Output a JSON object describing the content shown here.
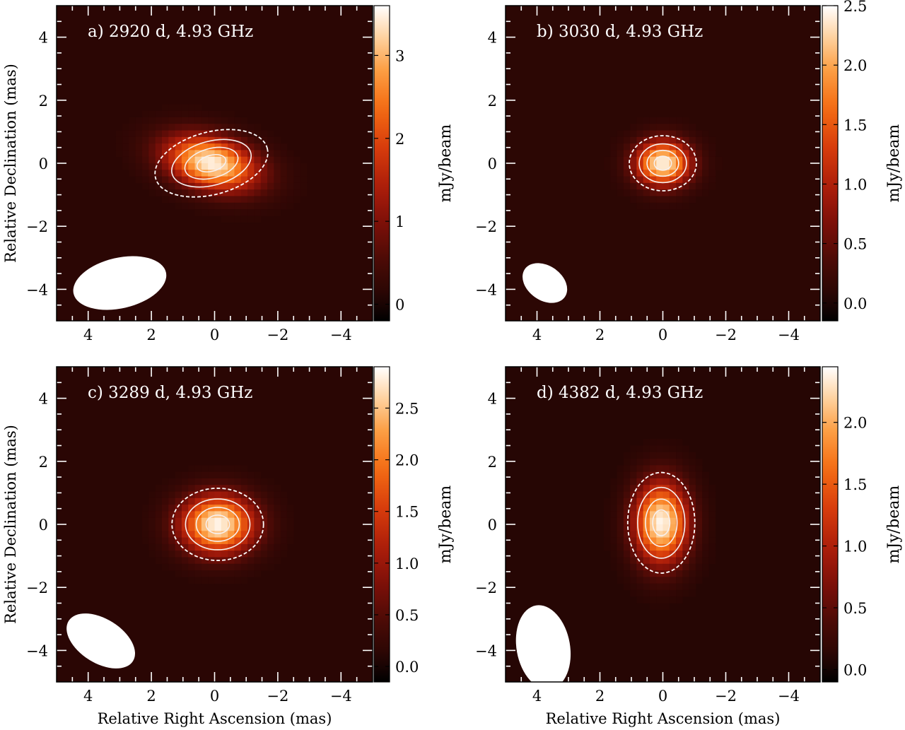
{
  "figure": {
    "xlabel": "Relative Right Ascension (mas)",
    "ylabel": "Relative Declination (mas)",
    "colorbar_label": "mJy/beam"
  },
  "chart_data": [
    {
      "type": "heatmap",
      "panel": "a",
      "title": "a) 2920 d, 4.93 GHz",
      "xlabel": "Relative Right Ascension (mas)",
      "ylabel": "Relative Declination (mas)",
      "xlim": [
        5,
        -5
      ],
      "ylim": [
        -5,
        5
      ],
      "xticks": [
        4,
        2,
        0,
        -2,
        -4
      ],
      "yticks": [
        -4,
        -2,
        0,
        2,
        4
      ],
      "colorbar": {
        "label": "mJy/beam",
        "range": [
          -0.2,
          3.6
        ],
        "ticks": [
          0,
          1,
          2,
          3
        ],
        "tick_labels": [
          "0",
          "1",
          "2",
          "3"
        ]
      },
      "source": {
        "center_ra": 0.1,
        "center_dec": 0.0,
        "major_fwhm_mas": 2.4,
        "minor_fwhm_mas": 1.3,
        "pa_deg": 15,
        "peak_mJy": 3.5
      },
      "contours": [
        {
          "level_frac": 0.2,
          "style": "dashed"
        },
        {
          "level_frac": 0.45,
          "style": "solid"
        },
        {
          "level_frac": 0.7,
          "style": "solid"
        },
        {
          "level_frac": 0.9,
          "style": "solid"
        }
      ],
      "beam": {
        "ra": 3.0,
        "dec": -3.8,
        "major_mas": 3.0,
        "minor_mas": 1.6,
        "angle_deg": -13
      }
    },
    {
      "type": "heatmap",
      "panel": "b",
      "title": "b) 3030 d, 4.93 GHz",
      "xlabel": "Relative Right Ascension (mas)",
      "ylabel": "Relative Declination (mas)",
      "xlim": [
        5,
        -5
      ],
      "ylim": [
        -5,
        5
      ],
      "xticks": [
        4,
        2,
        0,
        -2,
        -4
      ],
      "yticks": [
        -4,
        -2,
        0,
        2,
        4
      ],
      "colorbar": {
        "label": "mJy/beam",
        "range": [
          -0.15,
          2.5
        ],
        "ticks": [
          0.0,
          0.5,
          1.0,
          1.5,
          2.0,
          2.5
        ],
        "tick_labels": [
          "0.0",
          "0.5",
          "1.0",
          "1.5",
          "2.0",
          "2.5"
        ]
      },
      "source": {
        "center_ra": 0.0,
        "center_dec": 0.0,
        "major_fwhm_mas": 1.4,
        "minor_fwhm_mas": 1.15,
        "pa_deg": 0,
        "peak_mJy": 2.45
      },
      "contours": [
        {
          "level_frac": 0.2,
          "style": "dashed"
        },
        {
          "level_frac": 0.45,
          "style": "solid"
        },
        {
          "level_frac": 0.7,
          "style": "solid"
        },
        {
          "level_frac": 0.9,
          "style": "solid"
        }
      ],
      "beam": {
        "ra": 3.75,
        "dec": -3.8,
        "major_mas": 1.55,
        "minor_mas": 1.1,
        "angle_deg": 35
      }
    },
    {
      "type": "heatmap",
      "panel": "c",
      "title": "c) 3289 d, 4.93 GHz",
      "xlabel": "Relative Right Ascension (mas)",
      "ylabel": "Relative Declination (mas)",
      "xlim": [
        5,
        -5
      ],
      "ylim": [
        -5,
        5
      ],
      "xticks": [
        4,
        2,
        0,
        -2,
        -4
      ],
      "yticks": [
        -4,
        -2,
        0,
        2,
        4
      ],
      "colorbar": {
        "label": "mJy/beam",
        "range": [
          -0.15,
          2.9
        ],
        "ticks": [
          0.0,
          0.5,
          1.0,
          1.5,
          2.0,
          2.5
        ],
        "tick_labels": [
          "0.0",
          "0.5",
          "1.0",
          "1.5",
          "2.0",
          "2.5"
        ]
      },
      "source": {
        "center_ra": -0.1,
        "center_dec": 0.0,
        "major_fwhm_mas": 1.9,
        "minor_fwhm_mas": 1.5,
        "pa_deg": 0,
        "peak_mJy": 2.85
      },
      "contours": [
        {
          "level_frac": 0.2,
          "style": "dashed"
        },
        {
          "level_frac": 0.45,
          "style": "solid"
        },
        {
          "level_frac": 0.7,
          "style": "solid"
        },
        {
          "level_frac": 0.9,
          "style": "solid"
        }
      ],
      "beam": {
        "ra": 3.6,
        "dec": -3.7,
        "major_mas": 2.4,
        "minor_mas": 1.4,
        "angle_deg": 32
      }
    },
    {
      "type": "heatmap",
      "panel": "d",
      "title": "d) 4382 d, 4.93 GHz",
      "xlabel": "Relative Right Ascension (mas)",
      "ylabel": "Relative Declination (mas)",
      "xlim": [
        5,
        -5
      ],
      "ylim": [
        -5,
        5
      ],
      "xticks": [
        4,
        2,
        0,
        -2,
        -4
      ],
      "yticks": [
        -4,
        -2,
        0,
        2,
        4
      ],
      "colorbar": {
        "label": "mJy/beam",
        "range": [
          -0.1,
          2.45
        ],
        "ticks": [
          0.0,
          0.5,
          1.0,
          1.5,
          2.0
        ],
        "tick_labels": [
          "0.0",
          "0.5",
          "1.0",
          "1.5",
          "2.0"
        ]
      },
      "source": {
        "center_ra": 0.05,
        "center_dec": 0.05,
        "major_fwhm_mas": 2.1,
        "minor_fwhm_mas": 1.4,
        "pa_deg": 90,
        "peak_mJy": 2.4
      },
      "contours": [
        {
          "level_frac": 0.2,
          "style": "dashed"
        },
        {
          "level_frac": 0.45,
          "style": "solid"
        },
        {
          "level_frac": 0.7,
          "style": "solid"
        },
        {
          "level_frac": 0.9,
          "style": "solid"
        }
      ],
      "beam": {
        "ra": 3.8,
        "dec": -3.9,
        "major_mas": 2.7,
        "minor_mas": 1.7,
        "angle_deg": 80
      }
    }
  ]
}
